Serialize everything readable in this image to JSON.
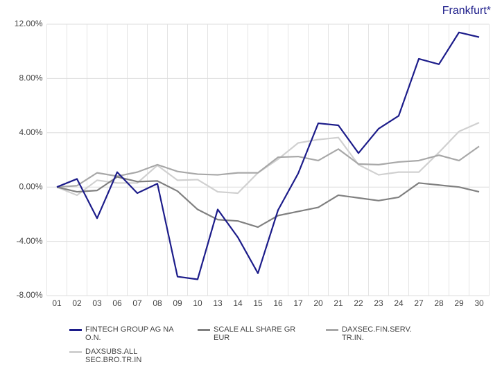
{
  "chart_data": {
    "type": "line",
    "title": "Frankfurt*",
    "categories": [
      "01",
      "02",
      "03",
      "06",
      "07",
      "08",
      "09",
      "10",
      "13",
      "14",
      "15",
      "16",
      "17",
      "20",
      "21",
      "22",
      "23",
      "24",
      "27",
      "28",
      "29",
      "30"
    ],
    "series": [
      {
        "name": "FINTECH GROUP AG NA O.N.",
        "color": "#1c1c8a",
        "values": [
          0,
          0.6,
          -2.3,
          1.1,
          -0.45,
          0.25,
          -6.6,
          -6.8,
          -1.65,
          -3.7,
          -6.35,
          -1.7,
          1.0,
          4.7,
          4.55,
          2.5,
          4.3,
          5.25,
          9.45,
          9.05,
          11.4,
          11.05
        ]
      },
      {
        "name": "SCALE ALL SHARE GR EUR",
        "color": "#808080",
        "values": [
          0,
          -0.35,
          -0.25,
          0.75,
          0.4,
          0.45,
          -0.3,
          -1.65,
          -2.4,
          -2.5,
          -2.95,
          -2.1,
          -1.8,
          -1.5,
          -0.6,
          -0.8,
          -1.0,
          -0.75,
          0.3,
          0.15,
          0,
          -0.35
        ]
      },
      {
        "name": "DAXSEC.FIN.SERV. TR.IN.",
        "color": "#a8a8a8",
        "values": [
          0,
          0.1,
          1.05,
          0.8,
          1.1,
          1.65,
          1.15,
          0.95,
          0.9,
          1.05,
          1.05,
          2.2,
          2.25,
          1.95,
          2.8,
          1.7,
          1.65,
          1.85,
          1.95,
          2.35,
          1.95,
          3.0
        ]
      },
      {
        "name": "DAXSUBS.ALL SEC.BRO.TR.IN",
        "color": "#d0d0d0",
        "values": [
          0,
          -0.6,
          0.5,
          0.3,
          0.3,
          1.6,
          0.5,
          0.55,
          -0.35,
          -0.45,
          1.05,
          2.05,
          3.25,
          3.5,
          3.65,
          1.65,
          0.9,
          1.1,
          1.1,
          2.55,
          4.1,
          4.75
        ]
      }
    ],
    "ylim": [
      -8,
      12
    ],
    "yticks": [
      {
        "value": -8,
        "label": "-8.00%"
      },
      {
        "value": -4,
        "label": "-4.00%"
      },
      {
        "value": 0,
        "label": "0.00%"
      },
      {
        "value": 4,
        "label": "4.00%"
      },
      {
        "value": 8,
        "label": "8.00%"
      },
      {
        "value": 12,
        "label": "12.00%"
      }
    ],
    "grid": true
  }
}
